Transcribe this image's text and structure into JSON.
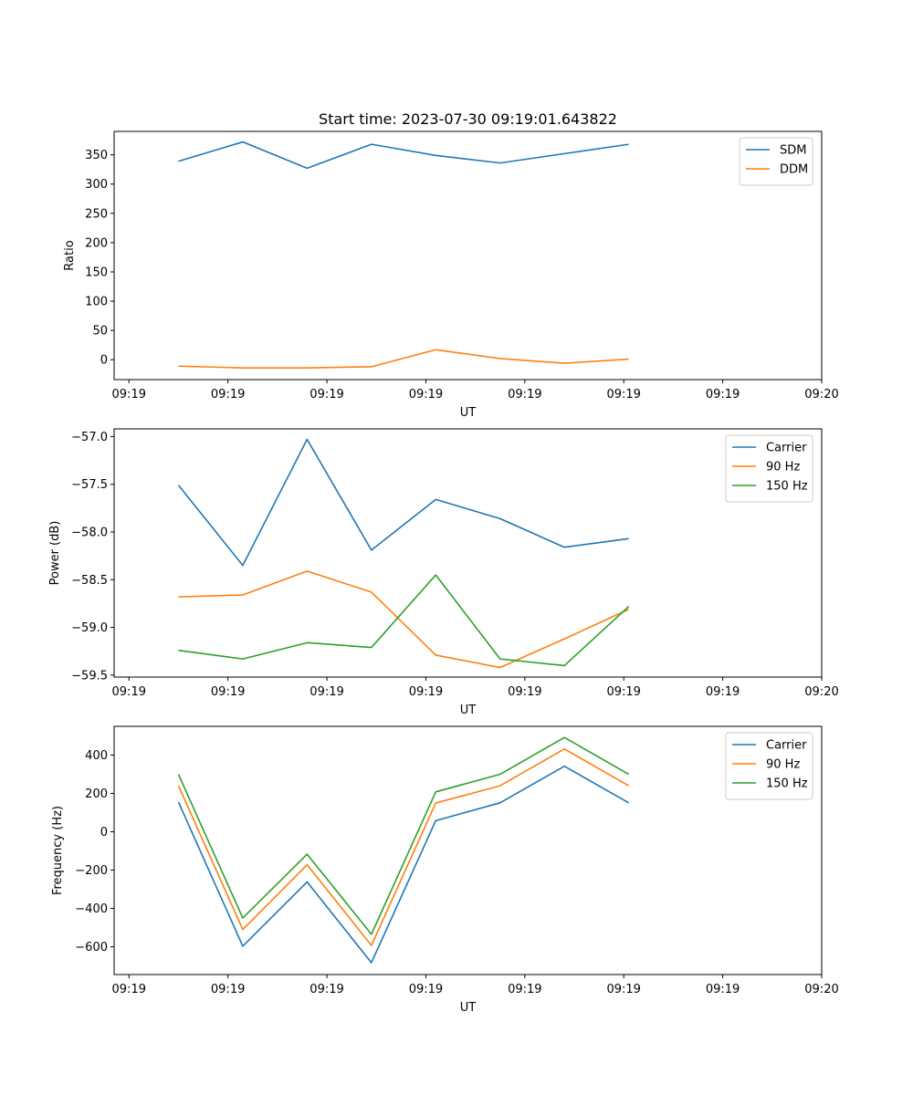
{
  "chart_data": [
    {
      "type": "line",
      "title": "Start time: 2023-07-30 09:19:01.643822",
      "xlabel": "UT",
      "ylabel": "Ratio",
      "x_tick_labels": [
        "09:19",
        "09:19",
        "09:19",
        "09:19",
        "09:19",
        "09:19",
        "09:19",
        "09:20"
      ],
      "x_tick_values": [
        0,
        1,
        2,
        3,
        4,
        5,
        6,
        7
      ],
      "xlim": [
        -0.15,
        7.0
      ],
      "x": [
        0.5,
        1.15,
        1.8,
        2.45,
        3.1,
        3.75,
        4.4,
        5.05
      ],
      "ylim": [
        -34,
        390
      ],
      "y_ticks": [
        0,
        50,
        100,
        150,
        200,
        250,
        300,
        350
      ],
      "legend_position": "top-right",
      "series": [
        {
          "name": "SDM",
          "color": "#1f77b4",
          "values": [
            339,
            372,
            327,
            368,
            349,
            336,
            352,
            368
          ]
        },
        {
          "name": "DDM",
          "color": "#ff7f0e",
          "values": [
            -11,
            -14,
            -14,
            -12,
            17,
            2,
            -6,
            1
          ]
        }
      ]
    },
    {
      "type": "line",
      "title": "",
      "xlabel": "UT",
      "ylabel": "Power (dB)",
      "x_tick_labels": [
        "09:19",
        "09:19",
        "09:19",
        "09:19",
        "09:19",
        "09:19",
        "09:19",
        "09:20"
      ],
      "x_tick_values": [
        0,
        1,
        2,
        3,
        4,
        5,
        6,
        7
      ],
      "xlim": [
        -0.15,
        7.0
      ],
      "x": [
        0.5,
        1.15,
        1.8,
        2.45,
        3.1,
        3.75,
        4.4,
        5.05
      ],
      "ylim": [
        -59.52,
        -56.92
      ],
      "y_ticks": [
        -59.5,
        -59.0,
        -58.5,
        -58.0,
        -57.5,
        -57.0
      ],
      "y_tick_labels": [
        "−59.5",
        "−59.0",
        "−58.5",
        "−58.0",
        "−57.5",
        "−57.0"
      ],
      "legend_position": "top-right",
      "series": [
        {
          "name": "Carrier",
          "color": "#1f77b4",
          "values": [
            -57.51,
            -58.35,
            -57.03,
            -58.19,
            -57.66,
            -57.86,
            -58.16,
            -58.07
          ]
        },
        {
          "name": "90 Hz",
          "color": "#ff7f0e",
          "values": [
            -58.68,
            -58.66,
            -58.41,
            -58.63,
            -59.29,
            -59.42,
            -59.12,
            -58.81
          ]
        },
        {
          "name": "150 Hz",
          "color": "#2ca02c",
          "values": [
            -59.24,
            -59.33,
            -59.16,
            -59.21,
            -58.45,
            -59.33,
            -59.4,
            -58.78
          ]
        }
      ]
    },
    {
      "type": "line",
      "title": "",
      "xlabel": "UT",
      "ylabel": "Frequency (Hz)",
      "x_tick_labels": [
        "09:19",
        "09:19",
        "09:19",
        "09:19",
        "09:19",
        "09:19",
        "09:19",
        "09:20"
      ],
      "x_tick_values": [
        0,
        1,
        2,
        3,
        4,
        5,
        6,
        7
      ],
      "xlim": [
        -0.15,
        7.0
      ],
      "x": [
        0.5,
        1.15,
        1.8,
        2.45,
        3.1,
        3.75,
        4.4,
        5.05
      ],
      "ylim": [
        -745,
        550
      ],
      "y_ticks": [
        -600,
        -400,
        -200,
        0,
        200,
        400
      ],
      "y_tick_labels": [
        "−600",
        "−400",
        "−200",
        "0",
        "200",
        "400"
      ],
      "legend_position": "top-right",
      "series": [
        {
          "name": "Carrier",
          "color": "#1f77b4",
          "values": [
            155,
            -597,
            -262,
            -683,
            58,
            151,
            342,
            151
          ]
        },
        {
          "name": "90 Hz",
          "color": "#ff7f0e",
          "values": [
            240,
            -510,
            -172,
            -593,
            150,
            240,
            432,
            240
          ]
        },
        {
          "name": "150 Hz",
          "color": "#2ca02c",
          "values": [
            300,
            -450,
            -117,
            -535,
            208,
            300,
            492,
            300
          ]
        }
      ]
    }
  ]
}
